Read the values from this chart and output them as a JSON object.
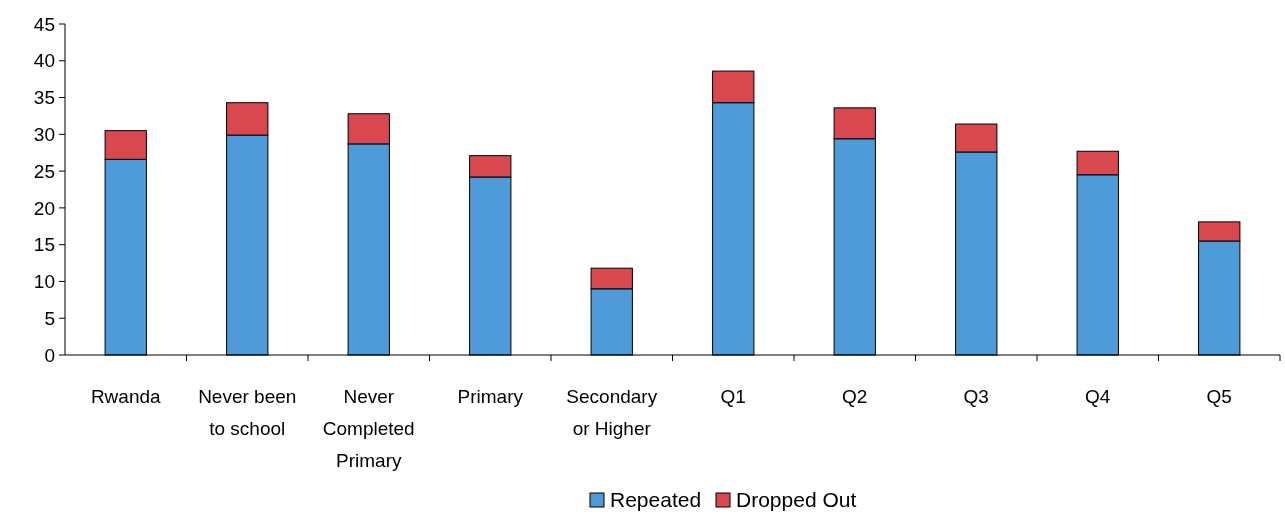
{
  "chart_data": {
    "type": "bar",
    "stacked": true,
    "categories": [
      "Rwanda",
      "Never been to school",
      "Never Completed Primary",
      "Primary",
      "Secondary or Higher",
      "Q1",
      "Q2",
      "Q3",
      "Q4",
      "Q5"
    ],
    "series": [
      {
        "name": "Repeated",
        "color": "#4f9ad8",
        "values": [
          26.6,
          29.9,
          28.7,
          24.2,
          9.0,
          34.3,
          29.4,
          27.6,
          24.5,
          15.5
        ]
      },
      {
        "name": "Dropped Out",
        "color": "#d9474f",
        "values": [
          3.9,
          4.4,
          4.1,
          2.9,
          2.8,
          4.3,
          4.2,
          3.8,
          3.2,
          2.6
        ]
      }
    ],
    "ylim": [
      0,
      45
    ],
    "yticks": [
      0,
      5,
      10,
      15,
      20,
      25,
      30,
      35,
      40,
      45
    ],
    "grid": false,
    "legend": "bottom"
  }
}
